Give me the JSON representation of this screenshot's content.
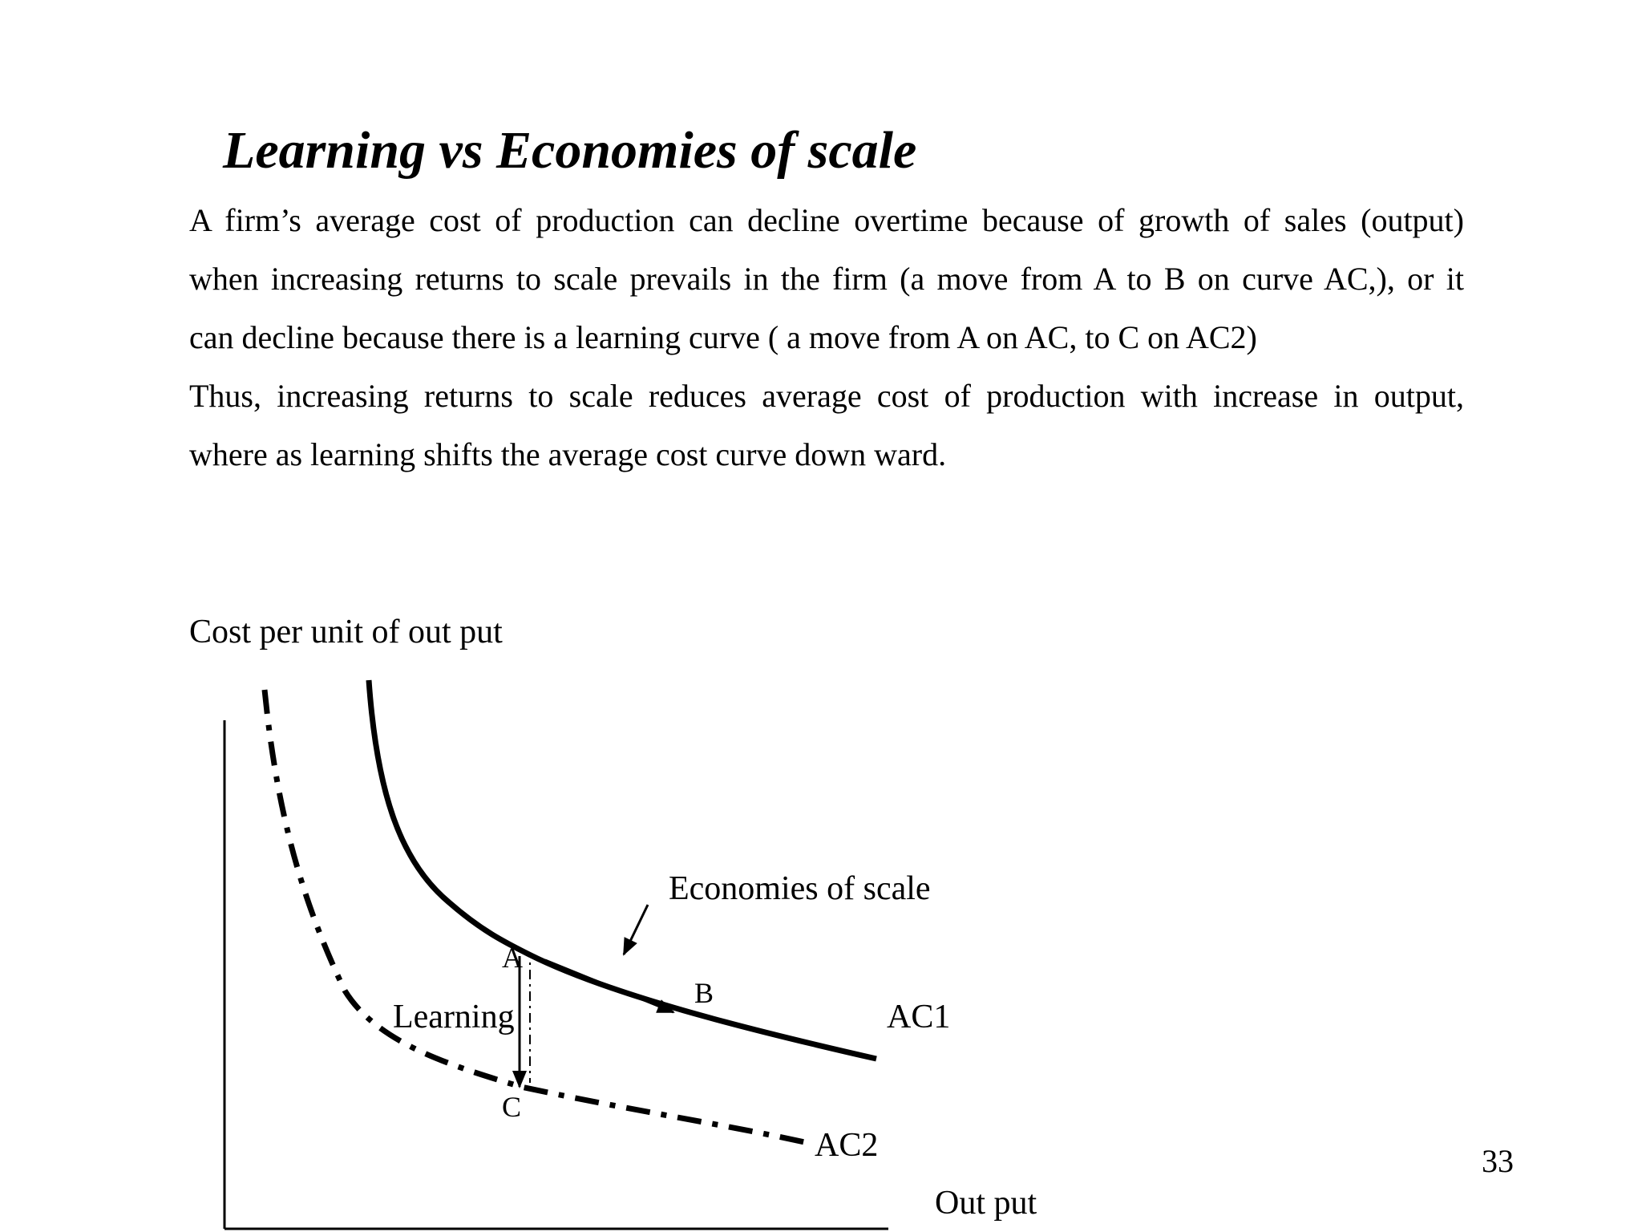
{
  "slide": {
    "title": "Learning vs Economies of scale",
    "paragraph_lines": [
      "A firm’s average cost of production can decline overtime because of growth of sales (output)",
      "when increasing returns to scale prevails in the firm (a move from A to B on curve AC,), or it",
      "can decline because there is a learning curve ( a move from A on AC, to C on AC2)",
      "Thus, increasing returns to scale reduces average cost of production with increase in output,",
      "where as learning shifts the average cost curve down ward."
    ],
    "page_number": "33"
  },
  "diagram": {
    "y_axis_label": "Cost per unit of out put",
    "x_axis_label": "Out put",
    "curves": {
      "ac1_label": "AC1",
      "ac2_label": "AC2"
    },
    "points": {
      "a": "A",
      "b": "B",
      "c": "C"
    },
    "annotations": {
      "economies_of_scale": "Economies of scale",
      "learning": "Learning"
    }
  }
}
